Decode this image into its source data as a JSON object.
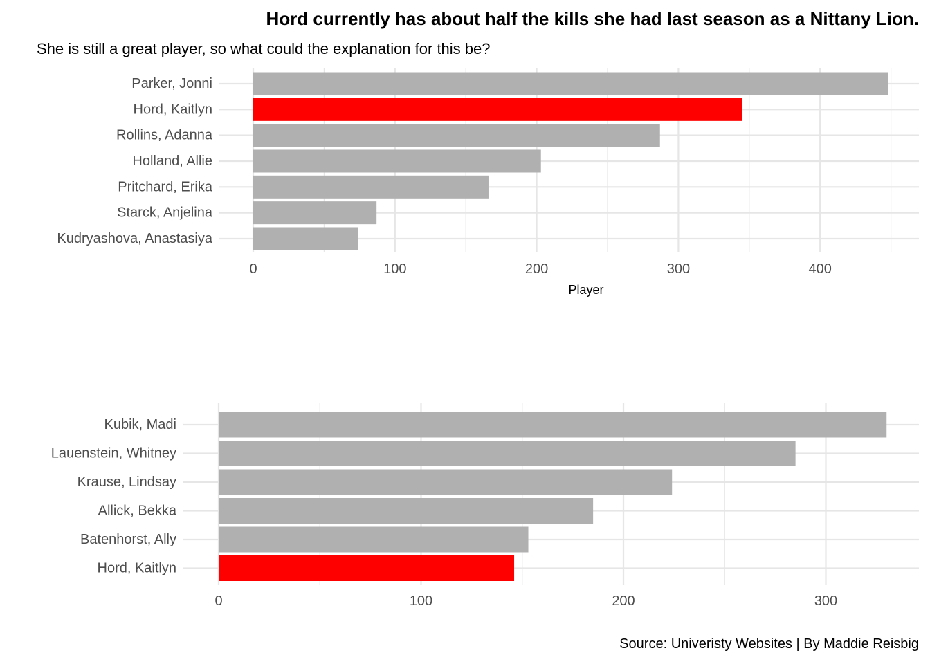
{
  "title": "Hord currently has about half the kills she had last season as a Nittany Lion.",
  "subtitle": "She is still a great player, so what could the explanation for this be?",
  "caption": "Source: Univeristy Websites | By Maddie Reisbig",
  "colors": {
    "highlight": "#ff0000",
    "bar": "#b0b0b0",
    "grid": "#e6e6e6"
  },
  "chart_data": [
    {
      "type": "bar",
      "orientation": "horizontal",
      "categories": [
        "Parker, Jonni",
        "Hord, Kaitlyn",
        "Rollins, Adanna",
        "Holland, Allie",
        "Pritchard, Erika",
        "Starck, Anjelina",
        "Kudryashova, Anastasiya"
      ],
      "values": [
        448,
        345,
        287,
        203,
        166,
        87,
        74
      ],
      "highlight": "Hord, Kaitlyn",
      "xlabel": "Player",
      "ylabel": "",
      "xlim": [
        0,
        460
      ],
      "ticks": [
        0,
        100,
        200,
        300,
        400
      ],
      "grid": true
    },
    {
      "type": "bar",
      "orientation": "horizontal",
      "categories": [
        "Kubik, Madi",
        "Lauenstein, Whitney",
        "Krause, Lindsay",
        "Allick, Bekka",
        "Batenhorst, Ally",
        "Hord, Kaitlyn"
      ],
      "values": [
        330,
        285,
        224,
        185,
        153,
        146
      ],
      "highlight": "Hord, Kaitlyn",
      "xlabel": "",
      "ylabel": "",
      "xlim": [
        0,
        340
      ],
      "ticks": [
        0,
        100,
        200,
        300
      ],
      "grid": true
    }
  ]
}
